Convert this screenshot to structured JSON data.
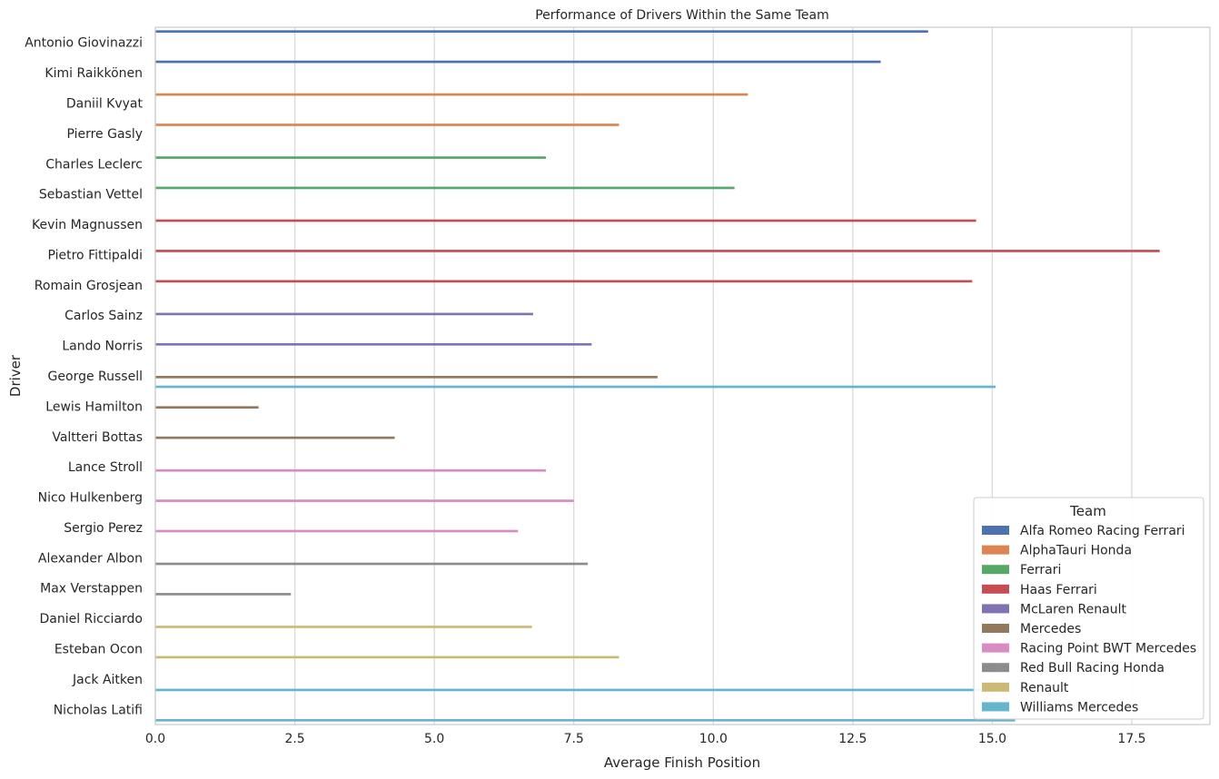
{
  "chart_data": {
    "type": "bar",
    "orientation": "horizontal",
    "title": "Performance of Drivers Within the Same Team",
    "xlabel": "Average Finish Position",
    "ylabel": "Driver",
    "xlim": [
      0,
      18.9
    ],
    "x_ticks": [
      0.0,
      2.5,
      5.0,
      7.5,
      10.0,
      12.5,
      15.0,
      17.5
    ],
    "x_tick_labels": [
      "0.0",
      "2.5",
      "5.0",
      "7.5",
      "10.0",
      "12.5",
      "15.0",
      "17.5"
    ],
    "grid": true,
    "legend_position": "bottom-right",
    "legend_title": "Team",
    "categories": [
      "Antonio Giovinazzi",
      "Kimi Raikkönen",
      "Daniil Kvyat",
      "Pierre Gasly",
      "Charles Leclerc",
      "Sebastian Vettel",
      "Kevin Magnussen",
      "Pietro Fittipaldi",
      "Romain Grosjean",
      "Carlos Sainz",
      "Lando Norris",
      "George Russell",
      "Lewis Hamilton",
      "Valtteri Bottas",
      "Lance Stroll",
      "Nico Hulkenberg",
      "Sergio Perez",
      "Alexander Albon",
      "Max Verstappen",
      "Daniel Ricciardo",
      "Esteban Ocon",
      "Jack Aitken",
      "Nicholas Latifi"
    ],
    "series": [
      {
        "name": "Alfa Romeo Racing Ferrari",
        "color": "#4c72b0",
        "points": [
          {
            "driver": "Antonio Giovinazzi",
            "value": 13.85
          },
          {
            "driver": "Kimi Raikkönen",
            "value": 13.0
          }
        ]
      },
      {
        "name": "AlphaTauri Honda",
        "color": "#dd8452",
        "points": [
          {
            "driver": "Daniil Kvyat",
            "value": 10.62
          },
          {
            "driver": "Pierre Gasly",
            "value": 8.31
          }
        ]
      },
      {
        "name": "Ferrari",
        "color": "#55a868",
        "points": [
          {
            "driver": "Charles Leclerc",
            "value": 7.0
          },
          {
            "driver": "Sebastian Vettel",
            "value": 10.38
          }
        ]
      },
      {
        "name": "Haas Ferrari",
        "color": "#c44e52",
        "points": [
          {
            "driver": "Kevin Magnussen",
            "value": 14.71
          },
          {
            "driver": "Pietro Fittipaldi",
            "value": 18.0
          },
          {
            "driver": "Romain Grosjean",
            "value": 14.64
          }
        ]
      },
      {
        "name": "McLaren Renault",
        "color": "#8172b3",
        "points": [
          {
            "driver": "Carlos Sainz",
            "value": 6.77
          },
          {
            "driver": "Lando Norris",
            "value": 7.82
          }
        ]
      },
      {
        "name": "Mercedes",
        "color": "#937860",
        "points": [
          {
            "driver": "George Russell",
            "value": 9.0
          },
          {
            "driver": "Lewis Hamilton",
            "value": 1.85
          },
          {
            "driver": "Valtteri Bottas",
            "value": 4.29
          }
        ]
      },
      {
        "name": "Racing Point BWT Mercedes",
        "color": "#da8bc3",
        "points": [
          {
            "driver": "Lance Stroll",
            "value": 7.0
          },
          {
            "driver": "Nico Hulkenberg",
            "value": 7.5
          },
          {
            "driver": "Sergio Perez",
            "value": 6.5
          }
        ]
      },
      {
        "name": "Red Bull Racing Honda",
        "color": "#8c8c8c",
        "points": [
          {
            "driver": "Alexander Albon",
            "value": 7.75
          },
          {
            "driver": "Max Verstappen",
            "value": 2.43
          }
        ]
      },
      {
        "name": "Renault",
        "color": "#ccb974",
        "points": [
          {
            "driver": "Daniel Ricciardo",
            "value": 6.75
          },
          {
            "driver": "Esteban Ocon",
            "value": 8.31
          }
        ]
      },
      {
        "name": "Williams Mercedes",
        "color": "#64b5cd",
        "points": [
          {
            "driver": "George Russell",
            "value": 15.06
          },
          {
            "driver": "Jack Aitken",
            "value": 15.0
          },
          {
            "driver": "Nicholas Latifi",
            "value": 15.41
          }
        ]
      }
    ]
  }
}
